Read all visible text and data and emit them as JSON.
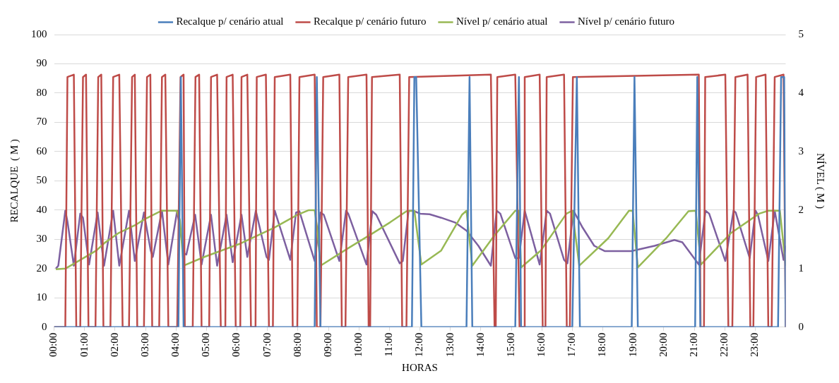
{
  "chart_data": {
    "type": "line",
    "xlabel": "HORAS",
    "ylabel": "RECALQUE  ( M )",
    "y2label": "NÍVEL ( M )",
    "xlim": [
      0,
      24
    ],
    "xticks": [
      {
        "value": 0,
        "label": "00:00"
      },
      {
        "value": 1,
        "label": "01:00"
      },
      {
        "value": 2,
        "label": "02:00"
      },
      {
        "value": 3,
        "label": "03:00"
      },
      {
        "value": 4,
        "label": "04:00"
      },
      {
        "value": 5,
        "label": "05:00"
      },
      {
        "value": 6,
        "label": "06:00"
      },
      {
        "value": 7,
        "label": "07:00"
      },
      {
        "value": 8,
        "label": "08:00"
      },
      {
        "value": 9,
        "label": "09:00"
      },
      {
        "value": 10,
        "label": "10:00"
      },
      {
        "value": 11,
        "label": "11:00"
      },
      {
        "value": 12,
        "label": "12:00"
      },
      {
        "value": 13,
        "label": "13:00"
      },
      {
        "value": 14,
        "label": "14:00"
      },
      {
        "value": 15,
        "label": "15:00"
      },
      {
        "value": 16,
        "label": "16:00"
      },
      {
        "value": 17,
        "label": "17:00"
      },
      {
        "value": 18,
        "label": "18:00"
      },
      {
        "value": 19,
        "label": "19:00"
      },
      {
        "value": 20,
        "label": "20:00"
      },
      {
        "value": 21,
        "label": "21:00"
      },
      {
        "value": 22,
        "label": "22:00"
      },
      {
        "value": 23,
        "label": "23:00"
      }
    ],
    "ylim": [
      0,
      100
    ],
    "yticks": [
      0,
      10,
      20,
      30,
      40,
      50,
      60,
      70,
      80,
      90,
      100
    ],
    "y2lim": [
      0,
      5
    ],
    "y2ticks": [
      0,
      1,
      2,
      3,
      4,
      5
    ],
    "grid": "y",
    "legend": "top",
    "marker": "none",
    "line_style": "solid",
    "series": [
      {
        "name": "Recalque p/ cenário atual",
        "color": "#4a7ebb",
        "x": [
          0,
          4.08,
          4.16,
          4.25,
          8.55,
          8.62,
          8.74,
          11.74,
          11.82,
          11.88,
          12.05,
          13.53,
          13.63,
          13.72,
          15.13,
          15.25,
          15.32,
          17.0,
          17.15,
          17.25,
          18.95,
          19.04,
          19.15,
          21.03,
          21.1,
          21.2,
          23.75,
          23.85,
          23.95,
          24
        ],
        "values": [
          0,
          0,
          85.5,
          0,
          0,
          85.5,
          0,
          0,
          85.5,
          85.5,
          0,
          0,
          85.5,
          0,
          0,
          85.5,
          0,
          0,
          85.5,
          0,
          0,
          85.5,
          0,
          0,
          85.5,
          0,
          0,
          85.5,
          85.5,
          0
        ]
      },
      {
        "name": "Recalque p/ cenário futuro",
        "color": "#be4b48",
        "x": [
          0,
          0.37,
          0.44,
          0.65,
          0.73,
          0.86,
          0.95,
          1.05,
          1.13,
          1.36,
          1.45,
          1.55,
          1.62,
          1.85,
          1.94,
          2.14,
          2.25,
          2.46,
          2.56,
          2.65,
          2.73,
          2.95,
          3.05,
          3.16,
          3.22,
          3.45,
          3.54,
          3.65,
          3.75,
          4.04,
          4.15,
          4.25,
          4.29,
          4.55,
          4.64,
          4.76,
          4.84,
          5.09,
          5.15,
          5.35,
          5.47,
          5.62,
          5.66,
          5.86,
          5.96,
          6.11,
          6.15,
          6.34,
          6.46,
          6.61,
          6.65,
          6.95,
          7.05,
          7.18,
          7.24,
          7.75,
          7.83,
          7.98,
          8.05,
          8.55,
          8.62,
          8.74,
          8.83,
          9.36,
          9.44,
          9.56,
          9.65,
          10.25,
          10.32,
          10.37,
          10.43,
          11.34,
          11.42,
          11.56,
          11.65,
          14.33,
          14.45,
          14.49,
          14.54,
          15.13,
          15.27,
          15.42,
          15.44,
          15.93,
          16.03,
          16.12,
          16.16,
          16.73,
          16.82,
          16.92,
          17.02,
          21.15,
          21.21,
          21.32,
          21.36,
          22.02,
          22.12,
          22.25,
          22.35,
          22.75,
          22.84,
          22.94,
          23.03,
          23.34,
          23.43,
          23.54,
          23.64,
          23.93,
          24.0
        ],
        "values": [
          0,
          0,
          85.5,
          86.3,
          0,
          0,
          85.5,
          86.3,
          0,
          0,
          85.5,
          86.3,
          0,
          0,
          85.5,
          86.3,
          0,
          0,
          85.5,
          86.3,
          0,
          0,
          85.5,
          86.3,
          0,
          0,
          85.5,
          86.3,
          0,
          0,
          85.5,
          86.3,
          0,
          0,
          85.5,
          86.3,
          0,
          0,
          85.5,
          86.3,
          0,
          0,
          85.5,
          86.3,
          0,
          0,
          85.5,
          86.3,
          0,
          0,
          85.5,
          86.3,
          0,
          0,
          85.5,
          86.3,
          0,
          0,
          85.5,
          86.3,
          0,
          0,
          85.5,
          86.3,
          0,
          0,
          85.5,
          86.3,
          0,
          0,
          85.5,
          86.3,
          0,
          0,
          85.5,
          86.3,
          0,
          0,
          85.5,
          86.3,
          0,
          0,
          85.5,
          86.3,
          0,
          0,
          85.5,
          86.3,
          0,
          0,
          85.5,
          86.3,
          0,
          0,
          85.5,
          86.3,
          0,
          0,
          85.5,
          86.3,
          0,
          0,
          85.5,
          86.3,
          0,
          0,
          85.5,
          86.3,
          0
        ]
      },
      {
        "name": "Nível p/ cenário atual",
        "color": "#98b954",
        "axis": "y2",
        "x": [
          0.06,
          0.37,
          0.67,
          1.39,
          1.66,
          2.12,
          2.65,
          2.99,
          3.53,
          4.02,
          4.13,
          4.25,
          4.93,
          6.07,
          7.22,
          7.98,
          8.36,
          8.55,
          8.63,
          8.74,
          9.65,
          10.41,
          11.02,
          11.56,
          11.82,
          12.05,
          12.7,
          13.38,
          13.53,
          13.72,
          14.45,
          15.13,
          15.25,
          15.32,
          15.97,
          16.81,
          17.0,
          17.23,
          18.18,
          18.86,
          18.98,
          19.15,
          20.08,
          20.81,
          21.05,
          21.22,
          22.21,
          23.13,
          23.43,
          23.81,
          24.0
        ],
        "values": [
          0.99,
          1.0,
          1.09,
          1.31,
          1.44,
          1.61,
          1.74,
          1.85,
          1.99,
          1.99,
          1.83,
          1.05,
          1.2,
          1.42,
          1.7,
          1.92,
          2.0,
          2.0,
          1.7,
          1.05,
          1.35,
          1.59,
          1.79,
          1.98,
          1.99,
          1.07,
          1.31,
          1.92,
          1.99,
          1.05,
          1.57,
          1.99,
          1.99,
          1.02,
          1.31,
          1.94,
          1.99,
          1.05,
          1.52,
          1.99,
          1.99,
          1.02,
          1.52,
          1.98,
          1.99,
          1.07,
          1.61,
          1.94,
          1.99,
          1.99,
          1.05
        ]
      },
      {
        "name": "Nível p/ cenário futuro",
        "color": "#7d60a0",
        "axis": "y2",
        "x": [
          0.06,
          0.14,
          0.37,
          0.44,
          0.65,
          0.86,
          0.95,
          1.15,
          1.43,
          1.64,
          1.94,
          2.14,
          2.46,
          2.65,
          2.95,
          3.17,
          3.24,
          3.54,
          3.75,
          4.04,
          4.26,
          4.34,
          4.63,
          4.84,
          5.15,
          5.35,
          5.66,
          5.86,
          6.15,
          6.34,
          6.62,
          6.97,
          7.05,
          7.24,
          7.75,
          7.94,
          8.05,
          8.55,
          8.74,
          8.85,
          9.36,
          9.58,
          9.65,
          10.25,
          10.44,
          10.57,
          11.34,
          11.44,
          11.63,
          11.78,
          12.01,
          12.32,
          12.7,
          13.15,
          13.53,
          13.92,
          14.33,
          14.52,
          14.64,
          15.13,
          15.25,
          15.44,
          15.93,
          16.16,
          16.27,
          16.73,
          16.84,
          17.04,
          17.34,
          17.72,
          18.06,
          18.94,
          19.7,
          20.35,
          20.61,
          21.15,
          21.37,
          21.49,
          22.02,
          22.29,
          22.36,
          22.82,
          23.01,
          23.09,
          23.43,
          23.64,
          23.93,
          24.0
        ],
        "values": [
          1.0,
          1.05,
          1.99,
          1.81,
          1.05,
          1.94,
          1.87,
          1.07,
          1.96,
          1.05,
          1.99,
          1.05,
          1.99,
          1.13,
          1.96,
          1.31,
          1.2,
          1.99,
          1.07,
          1.99,
          1.26,
          1.24,
          1.92,
          1.07,
          1.92,
          1.05,
          1.92,
          1.11,
          1.92,
          1.2,
          1.99,
          1.2,
          1.15,
          1.99,
          1.15,
          1.96,
          1.98,
          1.13,
          1.96,
          1.92,
          1.13,
          1.99,
          1.94,
          1.07,
          1.98,
          1.92,
          1.09,
          1.13,
          1.99,
          1.99,
          1.94,
          1.93,
          1.87,
          1.79,
          1.65,
          1.39,
          1.05,
          1.99,
          1.94,
          1.18,
          1.18,
          1.99,
          1.07,
          1.99,
          1.94,
          1.15,
          1.09,
          1.99,
          1.7,
          1.39,
          1.3,
          1.3,
          1.39,
          1.49,
          1.45,
          1.07,
          1.99,
          1.94,
          1.13,
          1.99,
          1.96,
          1.18,
          1.99,
          1.92,
          1.13,
          1.99,
          1.15,
          1.39
        ]
      }
    ]
  }
}
